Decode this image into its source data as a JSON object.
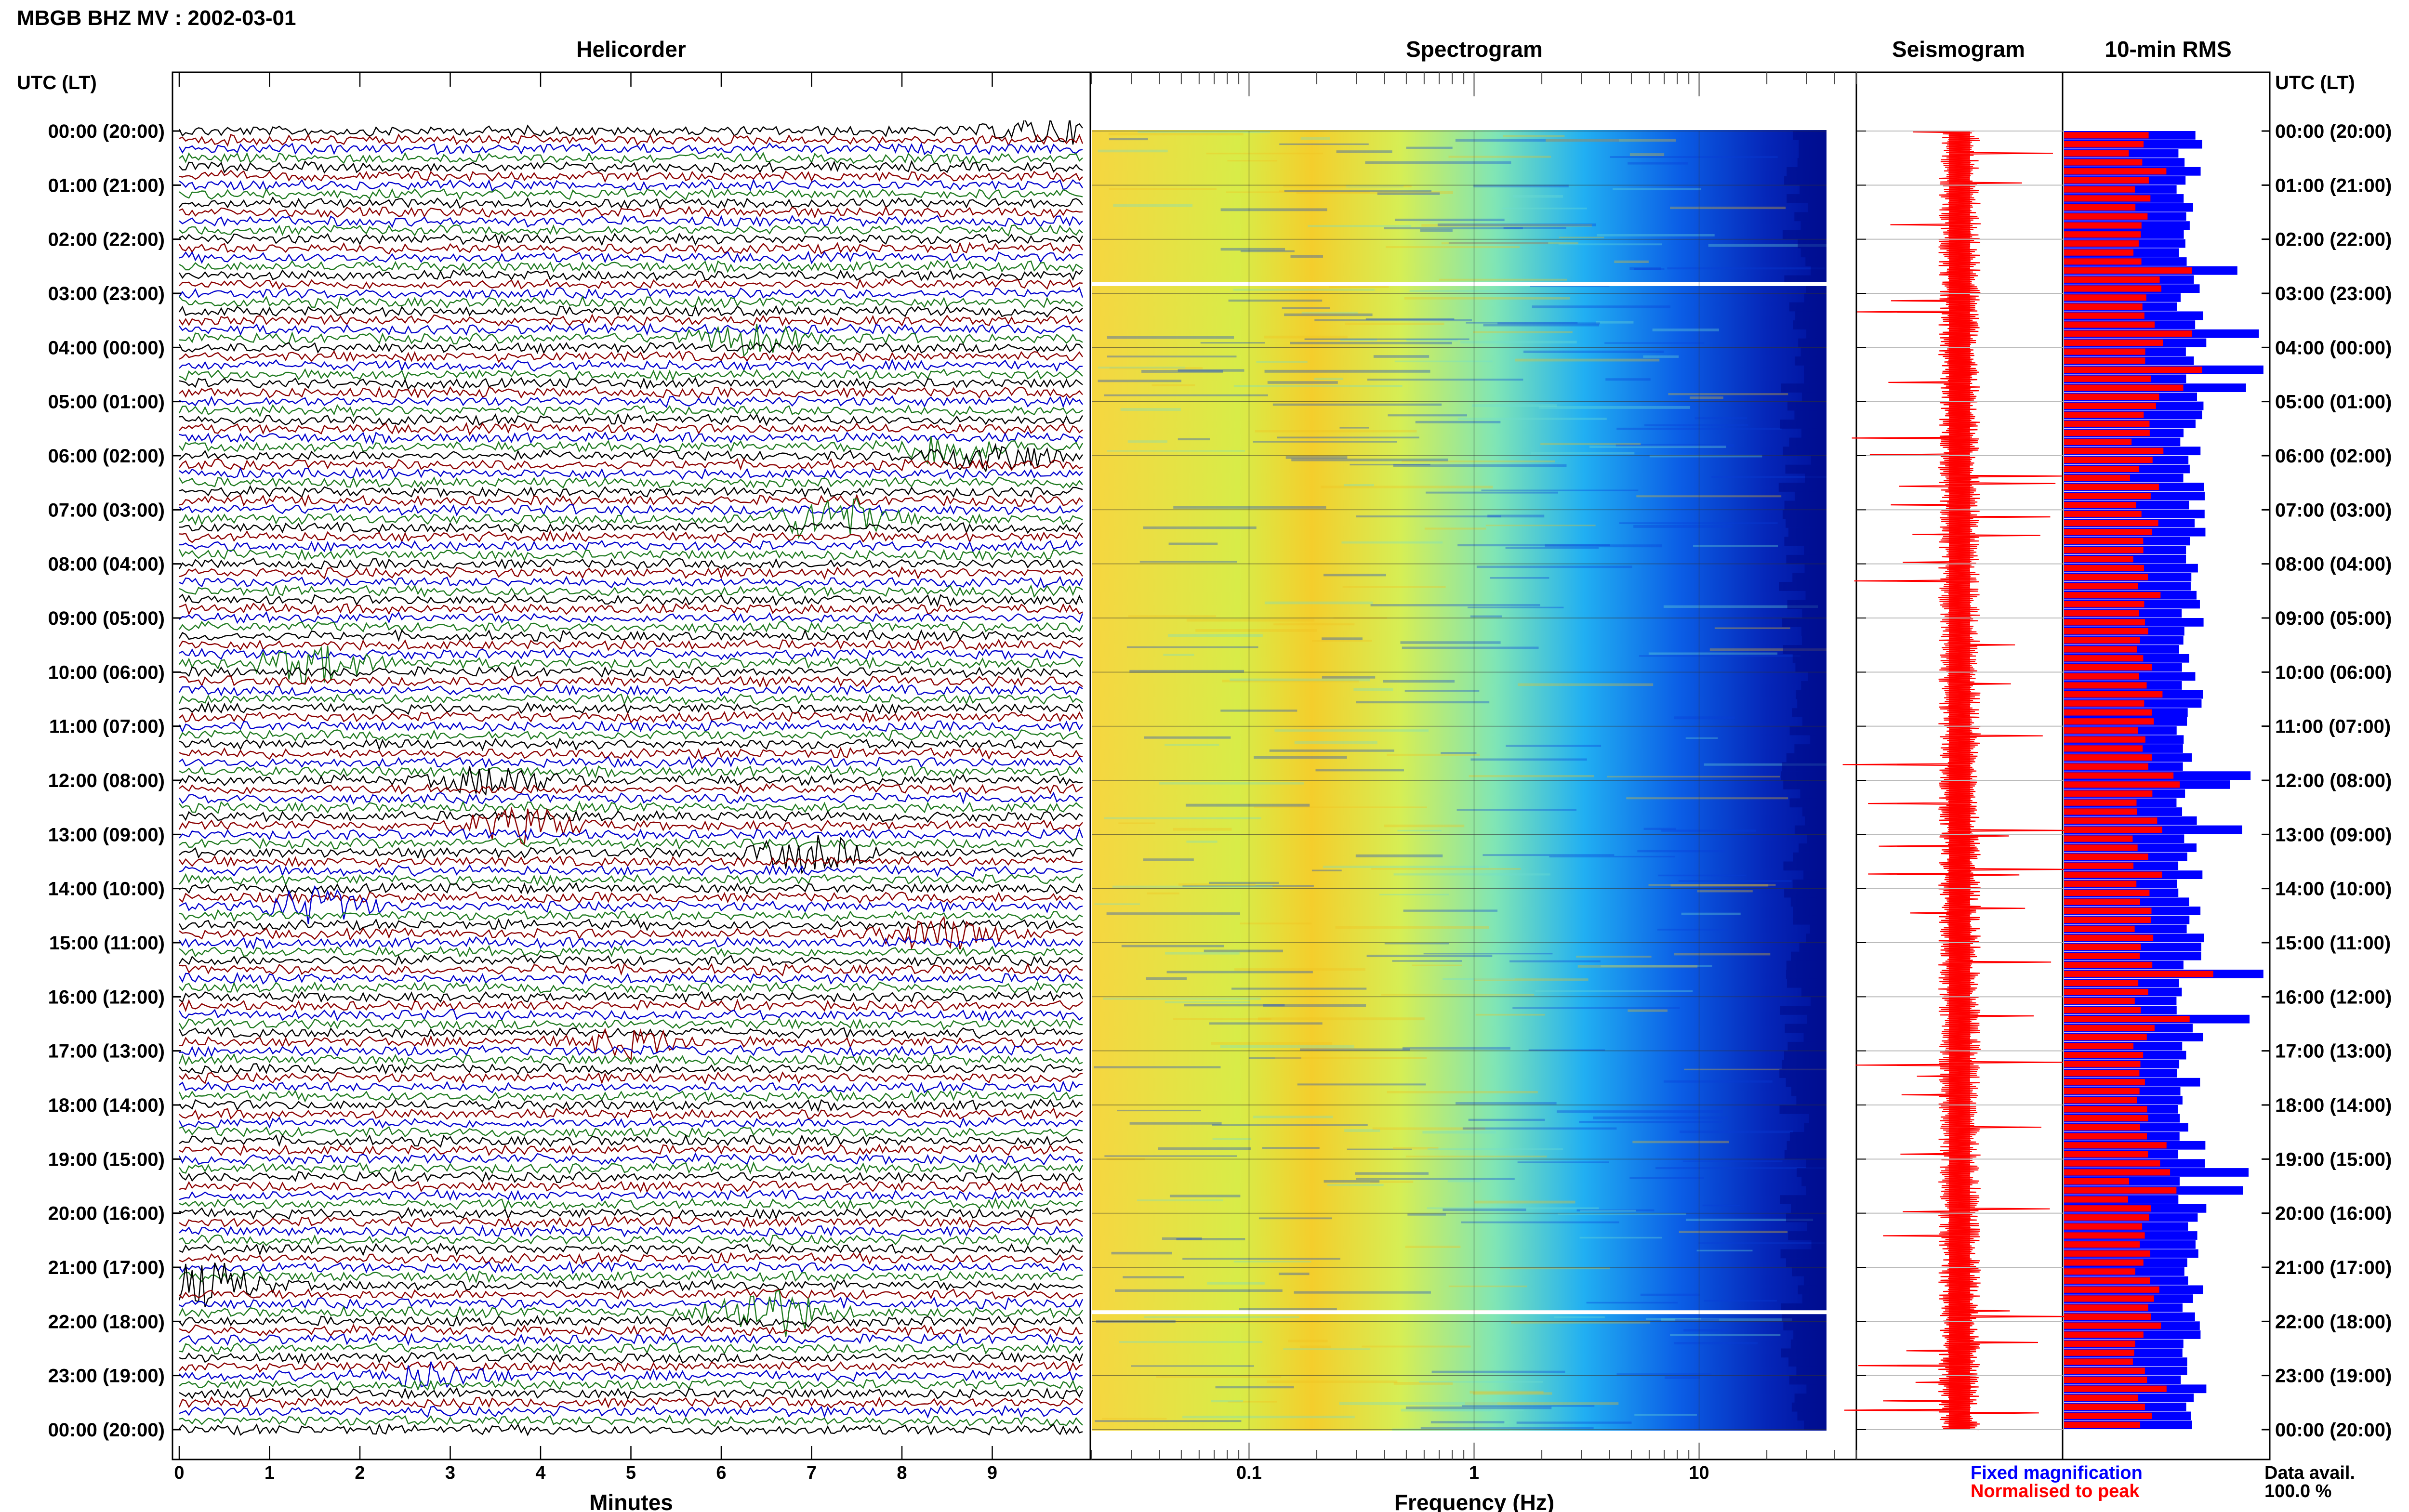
{
  "header": {
    "title": "MBGB BHZ MV : 2002-03-01",
    "tz_left": "UTC (LT)",
    "tz_right": "UTC (LT)"
  },
  "panels": {
    "helicorder": "Helicorder",
    "spectrogram": "Spectrogram",
    "seismogram": "Seismogram",
    "rms": "10-min RMS"
  },
  "legend": {
    "fixed": "Fixed magnification",
    "normalised": "Normalised to peak",
    "fixed_color": "#0000ff",
    "normalised_color": "#ff0000"
  },
  "availability": {
    "label": "Data avail.",
    "value": "100.0 %"
  },
  "colors": {
    "trace_cycle": [
      "#000000",
      "#8b0000",
      "#0000cd",
      "#1f7a1f"
    ],
    "spectrogram_scale": [
      "#00007f",
      "#0000ff",
      "#00aaff",
      "#5fe8d0",
      "#c8f050",
      "#ffee00",
      "#ffb000"
    ],
    "rms_fixed": "#0000ff",
    "rms_normalised": "#ff0000",
    "seismogram": "#ff0000"
  },
  "chart_data": [
    {
      "type": "line",
      "name": "helicorder",
      "title": "Helicorder",
      "xlabel": "Minutes",
      "ylabel": "UTC (LT)",
      "x_ticks": [
        "0",
        "1",
        "2",
        "3",
        "4",
        "5",
        "6",
        "7",
        "8",
        "9"
      ],
      "xlim": [
        0,
        10
      ],
      "y_ticks": [
        "00:00 (20:00)",
        "01:00 (21:00)",
        "02:00 (22:00)",
        "03:00 (23:00)",
        "04:00 (00:00)",
        "05:00 (01:00)",
        "06:00 (02:00)",
        "07:00 (03:00)",
        "08:00 (04:00)",
        "09:00 (05:00)",
        "10:00 (06:00)",
        "11:00 (07:00)",
        "12:00 (08:00)",
        "13:00 (09:00)",
        "14:00 (10:00)",
        "15:00 (11:00)",
        "16:00 (12:00)",
        "17:00 (13:00)",
        "18:00 (14:00)",
        "19:00 (15:00)",
        "20:00 (16:00)",
        "21:00 (17:00)",
        "22:00 (18:00)",
        "23:00 (19:00)",
        "00:00 (20:00)"
      ],
      "lines_per_hour": 6,
      "total_lines": 144,
      "events": [
        {
          "hour": 6.0,
          "minute": 9.0,
          "amplitude": 2.5,
          "color_index": 1
        },
        {
          "hour": 5.83,
          "minute": 8.5,
          "amplitude": 2.5,
          "color_index": 3
        },
        {
          "hour": 7.1,
          "minute": 7.2,
          "amplitude": 3.2,
          "color_index": 3
        },
        {
          "hour": 3.83,
          "minute": 6.3,
          "amplitude": 2.0,
          "color_index": 3
        },
        {
          "hour": 9.83,
          "minute": 1.5,
          "amplitude": 2.6,
          "color_index": 3
        },
        {
          "hour": 12.0,
          "minute": 3.5,
          "amplitude": 2.0,
          "color_index": 0
        },
        {
          "hour": 12.83,
          "minute": 3.8,
          "amplitude": 2.2,
          "color_index": 1
        },
        {
          "hour": 13.33,
          "minute": 7.0,
          "amplitude": 2.4,
          "color_index": 0
        },
        {
          "hour": 14.33,
          "minute": 1.5,
          "amplitude": 2.4,
          "color_index": 3
        },
        {
          "hour": 14.83,
          "minute": 8.4,
          "amplitude": 2.2,
          "color_index": 2
        },
        {
          "hour": 21.33,
          "minute": 0.3,
          "amplitude": 3.0,
          "color_index": 1
        },
        {
          "hour": 21.83,
          "minute": 6.5,
          "amplitude": 3.6,
          "color_index": 0
        },
        {
          "hour": 16.83,
          "minute": 5.0,
          "amplitude": 1.8,
          "color_index": 1
        },
        {
          "hour": 23.0,
          "minute": 2.8,
          "amplitude": 1.6,
          "color_index": 3
        },
        {
          "hour": 0.0,
          "minute": 9.6,
          "amplitude": 1.6,
          "color_index": 0
        }
      ]
    },
    {
      "type": "heatmap",
      "name": "spectrogram",
      "title": "Spectrogram",
      "xlabel": "Frequency (Hz)",
      "x_scale": "log",
      "x_ticks": [
        "0.1",
        "1",
        "10"
      ],
      "xlim": [
        0.02,
        50
      ],
      "y_rows_per_hour": 6,
      "data_gaps_utc_hours": [
        2.83,
        21.83
      ]
    },
    {
      "type": "line",
      "name": "seismogram",
      "title": "Seismogram",
      "y_span_hours": 24
    },
    {
      "type": "bar",
      "name": "rms",
      "title": "10-min RMS",
      "series": [
        {
          "name": "Fixed magnification"
        },
        {
          "name": "Normalised to peak"
        }
      ],
      "bins": 144
    }
  ]
}
